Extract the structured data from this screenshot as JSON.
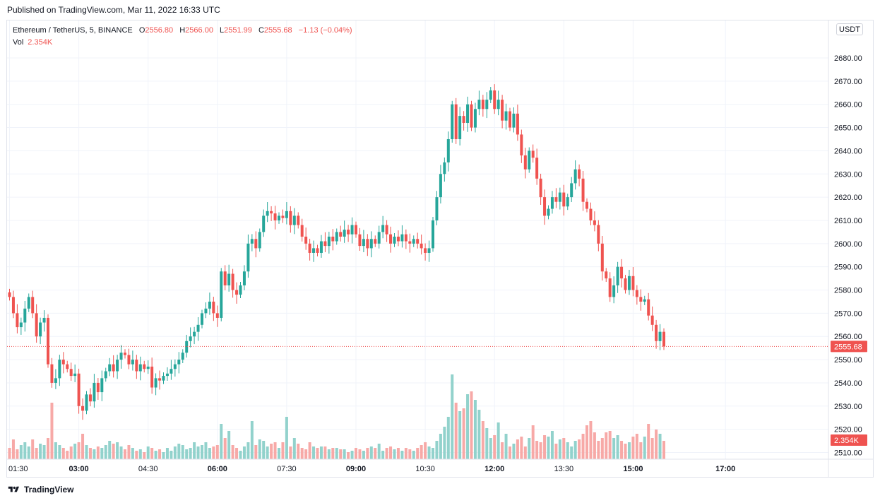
{
  "published": "Published on TradingView.com, Mar 11, 2022 16:33 UTC",
  "legend": {
    "symbol": "Ethereum / TetherUS, 5, BINANCE",
    "o_key": "O",
    "o_val": "2556.80",
    "h_key": "H",
    "h_val": "2566.00",
    "l_key": "L",
    "l_val": "2551.99",
    "c_key": "C",
    "c_val": "2555.68",
    "change": "−1.13 (−0.04%)",
    "vol_key": "Vol",
    "vol_val": "2.354K"
  },
  "currency": "USDT",
  "footer": {
    "brand": "TradingView",
    "logo": "tradingview-logo-icon"
  },
  "colors": {
    "up": "#26a69a",
    "down": "#ef5350",
    "vol_up": "#92d2cc",
    "vol_down": "#f7a9a7",
    "grid": "#f0f3fa"
  },
  "chart_data": {
    "type": "candlestick",
    "y_ticks": [
      2510,
      2520,
      2530,
      2540,
      2550,
      2560,
      2570,
      2580,
      2590,
      2600,
      2610,
      2620,
      2630,
      2640,
      2650,
      2660,
      2670,
      2680
    ],
    "y_tick_labels": [
      "2510.00",
      "2520.00",
      "2530.00",
      "2540.00",
      "2550.00",
      "2560.00",
      "2570.00",
      "2580.00",
      "2590.00",
      "2600.00",
      "2610.00",
      "2620.00",
      "2630.00",
      "2640.00",
      "2650.00",
      "2660.00",
      "2670.00",
      "2680.00"
    ],
    "ylim": [
      2505,
      2689
    ],
    "last_price": 2555.68,
    "last_price_label": "2555.68",
    "last_volume_label": "2.354K",
    "time_ticks": [
      {
        "label": "01:30",
        "bar": 0,
        "bold": false
      },
      {
        "label": "03:00",
        "bar": 18,
        "bold": true
      },
      {
        "label": "04:30",
        "bar": 36,
        "bold": false
      },
      {
        "label": "06:00",
        "bar": 54,
        "bold": true
      },
      {
        "label": "07:30",
        "bar": 72,
        "bold": false
      },
      {
        "label": "09:00",
        "bar": 90,
        "bold": true
      },
      {
        "label": "10:30",
        "bar": 108,
        "bold": false
      },
      {
        "label": "12:00",
        "bar": 126,
        "bold": true
      },
      {
        "label": "13:30",
        "bar": 144,
        "bold": false
      },
      {
        "label": "15:00",
        "bar": 162,
        "bold": true
      },
      {
        "label": "17:00",
        "bar": 186,
        "bold": true
      }
    ],
    "closes": [
      2577,
      2570,
      2564,
      2566,
      2572,
      2577,
      2570,
      2560,
      2566,
      2568,
      2548,
      2540,
      2542,
      2550,
      2548,
      2546,
      2543,
      2544,
      2530,
      2528,
      2535,
      2532,
      2540,
      2536,
      2542,
      2545,
      2548,
      2545,
      2550,
      2553,
      2552,
      2548,
      2550,
      2545,
      2548,
      2546,
      2547,
      2538,
      2542,
      2541,
      2543,
      2544,
      2546,
      2548,
      2550,
      2553,
      2558,
      2560,
      2562,
      2565,
      2570,
      2572,
      2575,
      2570,
      2568,
      2588,
      2582,
      2587,
      2580,
      2578,
      2582,
      2588,
      2600,
      2602,
      2598,
      2605,
      2612,
      2614,
      2613,
      2610,
      2612,
      2611,
      2614,
      2608,
      2612,
      2608,
      2603,
      2600,
      2596,
      2598,
      2596,
      2601,
      2599,
      2603,
      2601,
      2605,
      2603,
      2606,
      2604,
      2608,
      2604,
      2599,
      2602,
      2598,
      2602,
      2600,
      2605,
      2608,
      2604,
      2600,
      2603,
      2601,
      2604,
      2601,
      2600,
      2602,
      2600,
      2598,
      2596,
      2598,
      2610,
      2620,
      2630,
      2635,
      2645,
      2660,
      2645,
      2655,
      2652,
      2660,
      2650,
      2658,
      2662,
      2658,
      2662,
      2666,
      2658,
      2662,
      2653,
      2657,
      2650,
      2656,
      2647,
      2638,
      2632,
      2640,
      2637,
      2628,
      2620,
      2612,
      2615,
      2620,
      2618,
      2622,
      2616,
      2620,
      2626,
      2632,
      2628,
      2618,
      2615,
      2610,
      2608,
      2600,
      2588,
      2585,
      2577,
      2582,
      2590,
      2585,
      2580,
      2586,
      2580,
      2577,
      2575,
      2576,
      2569,
      2565,
      2558,
      2562,
      2555.68
    ],
    "volumes": [
      8,
      14,
      7,
      10,
      12,
      9,
      14,
      8,
      11,
      10,
      15,
      40,
      12,
      10,
      8,
      6,
      9,
      11,
      12,
      18,
      10,
      8,
      7,
      9,
      8,
      10,
      13,
      11,
      12,
      9,
      7,
      10,
      8,
      6,
      7,
      5,
      9,
      8,
      6,
      7,
      5,
      8,
      6,
      9,
      11,
      10,
      7,
      8,
      12,
      9,
      10,
      12,
      8,
      9,
      10,
      25,
      15,
      20,
      10,
      8,
      6,
      9,
      12,
      27,
      10,
      14,
      13,
      9,
      11,
      12,
      8,
      12,
      30,
      9,
      15,
      11,
      8,
      7,
      12,
      9,
      8,
      9,
      9,
      7,
      8,
      8,
      7,
      7,
      5,
      6,
      8,
      7,
      6,
      8,
      9,
      8,
      11,
      6,
      8,
      9,
      7,
      8,
      6,
      8,
      7,
      6,
      8,
      10,
      12,
      9,
      8,
      13,
      18,
      23,
      30,
      60,
      40,
      34,
      36,
      46,
      48,
      42,
      35,
      27,
      22,
      15,
      17,
      26,
      12,
      18,
      9,
      11,
      14,
      16,
      9,
      15,
      24,
      13,
      12,
      17,
      16,
      20,
      11,
      14,
      15,
      12,
      9,
      13,
      14,
      18,
      24,
      27,
      19,
      13,
      15,
      19,
      20,
      15,
      17,
      13,
      11,
      12,
      16,
      18,
      12,
      16,
      25,
      15,
      21,
      18,
      13
    ],
    "volume_scale_max": 80
  }
}
